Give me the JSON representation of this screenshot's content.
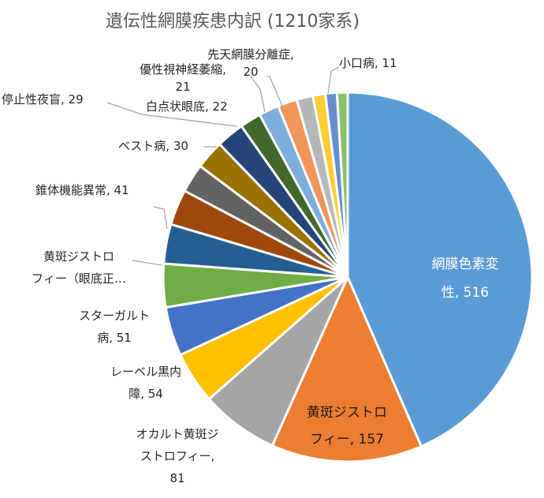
{
  "chart_data": {
    "type": "pie",
    "title": "遺伝性網膜疾患内訳 (1210家系)",
    "slices": [
      {
        "name": "網膜色素変性",
        "value": 516,
        "color": "#5B9BD5",
        "label_lines": [
          "網膜色素変",
          "性, 516"
        ]
      },
      {
        "name": "黄斑ジストロフィー",
        "value": 157,
        "color": "#ED7D31",
        "label_lines": [
          "黄斑ジストロ",
          "フィー, 157"
        ]
      },
      {
        "name": "オカルト黄斑ジストロフィー",
        "value": 81,
        "color": "#A5A5A5",
        "label_lines": [
          "オカルト黄斑ジ",
          "ストロフィー,",
          "81"
        ]
      },
      {
        "name": "レーベル黒内障",
        "value": 54,
        "color": "#FFC000",
        "label_lines": [
          "レーベル黒内",
          "障, 54"
        ]
      },
      {
        "name": "スターガルト病",
        "value": 51,
        "color": "#4472C4",
        "label_lines": [
          "スターガルト",
          "病, 51"
        ]
      },
      {
        "name": "黄斑ジストロフィー（眼底正…",
        "value": 45,
        "color": "#70AD47",
        "label_lines": [
          "黄斑ジストロ",
          "フィー（眼底正…"
        ]
      },
      {
        "name": "錐体機能異常",
        "value": 41,
        "color": "#255E91",
        "label_lines": [
          "錐体機能異常, 41"
        ]
      },
      {
        "name": "",
        "value": 37,
        "color": "#9E480E",
        "label_lines": []
      },
      {
        "name": "",
        "value": 30,
        "color": "#636363",
        "label_lines": []
      },
      {
        "name": "ベスト病",
        "value": 30,
        "color": "#997300",
        "label_lines": [
          "ベスト病, 30"
        ]
      },
      {
        "name": "停止性夜盲",
        "value": 29,
        "color": "#264478",
        "label_lines": [
          "停止性夜盲, 29"
        ]
      },
      {
        "name": "白点状眼底",
        "value": 22,
        "color": "#43682B",
        "label_lines": [
          "白点状眼底, 22"
        ]
      },
      {
        "name": "優性視神経萎縮",
        "value": 21,
        "color": "#7CAFDD",
        "label_lines": [
          "優性視神経萎縮,",
          "21"
        ]
      },
      {
        "name": "先天網膜分離症",
        "value": 20,
        "color": "#F1975A",
        "label_lines": [
          "先天網膜分離症,",
          "20"
        ]
      },
      {
        "name": "",
        "value": 17,
        "color": "#B7B7B7",
        "label_lines": []
      },
      {
        "name": "",
        "value": 13,
        "color": "#FFCD33",
        "label_lines": []
      },
      {
        "name": "",
        "value": 12,
        "color": "#698ED0",
        "label_lines": []
      },
      {
        "name": "小口病",
        "value": 11,
        "color": "#8CC168",
        "label_lines": [
          "小口病, 11"
        ]
      }
    ]
  }
}
